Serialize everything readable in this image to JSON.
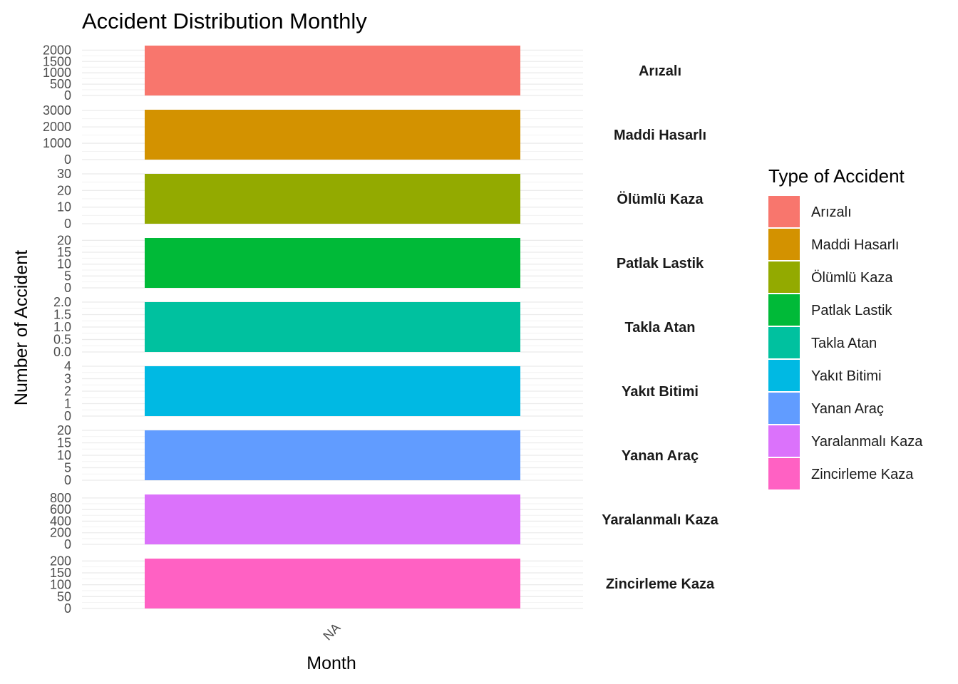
{
  "chart_data": {
    "type": "bar",
    "title": "Accident Distribution Monthly",
    "xlabel": "Month",
    "ylabel": "Number of Accident",
    "categories": [
      "NA"
    ],
    "legend": {
      "title": "Type of Accident",
      "position": "right"
    },
    "grid": true,
    "facets": [
      {
        "name": "Arızalı",
        "color": "#F8766D",
        "value": 2200,
        "ylim": [
          0,
          2200
        ],
        "ticks": [
          0,
          500,
          1000,
          1500,
          2000
        ],
        "tick_labels": [
          "0",
          "500",
          "1000",
          "1500",
          "2000"
        ]
      },
      {
        "name": "Maddi Hasarlı",
        "color": "#D39200",
        "value": 3050,
        "ylim": [
          0,
          3050
        ],
        "ticks": [
          0,
          1000,
          2000,
          3000
        ],
        "tick_labels": [
          "0",
          "1000",
          "2000",
          "3000"
        ]
      },
      {
        "name": "Ölümlü Kaza",
        "color": "#93AA00",
        "value": 30,
        "ylim": [
          0,
          30
        ],
        "ticks": [
          0,
          10,
          20,
          30
        ],
        "tick_labels": [
          "0",
          "10",
          "20",
          "30"
        ]
      },
      {
        "name": "Patlak Lastik",
        "color": "#00BA38",
        "value": 21,
        "ylim": [
          0,
          21
        ],
        "ticks": [
          0,
          5,
          10,
          15,
          20
        ],
        "tick_labels": [
          "0",
          "5",
          "10",
          "15",
          "20"
        ]
      },
      {
        "name": "Takla Atan",
        "color": "#00C19F",
        "value": 2,
        "ylim": [
          0,
          2
        ],
        "ticks": [
          0,
          0.5,
          1,
          1.5,
          2
        ],
        "tick_labels": [
          "0.0",
          "0.5",
          "1.0",
          "1.5",
          "2.0"
        ]
      },
      {
        "name": "Yakıt Bitimi",
        "color": "#00B9E3",
        "value": 4,
        "ylim": [
          0,
          4
        ],
        "ticks": [
          0,
          1,
          2,
          3,
          4
        ],
        "tick_labels": [
          "0",
          "1",
          "2",
          "3",
          "4"
        ]
      },
      {
        "name": "Yanan Araç",
        "color": "#619CFF",
        "value": 20,
        "ylim": [
          0,
          20
        ],
        "ticks": [
          0,
          5,
          10,
          15,
          20
        ],
        "tick_labels": [
          "0",
          "5",
          "10",
          "15",
          "20"
        ]
      },
      {
        "name": "Yaralanmalı Kaza",
        "color": "#DB72FB",
        "value": 860,
        "ylim": [
          0,
          860
        ],
        "ticks": [
          0,
          200,
          400,
          600,
          800
        ],
        "tick_labels": [
          "0",
          "200",
          "400",
          "600",
          "800"
        ]
      },
      {
        "name": "Zincirleme Kaza",
        "color": "#FF61C3",
        "value": 210,
        "ylim": [
          0,
          210
        ],
        "ticks": [
          0,
          50,
          100,
          150,
          200
        ],
        "tick_labels": [
          "0",
          "50",
          "100",
          "150",
          "200"
        ]
      }
    ]
  }
}
